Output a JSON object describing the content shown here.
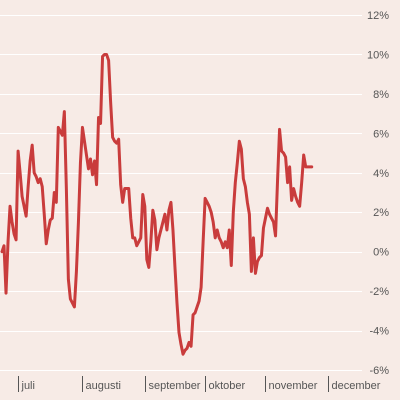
{
  "chart_data": {
    "type": "line",
    "title": "",
    "xlabel": "",
    "ylabel": "",
    "ylim": [
      -6,
      12
    ],
    "y_ticks": [
      -6,
      -4,
      -2,
      0,
      2,
      4,
      6,
      8,
      10,
      12
    ],
    "y_tick_labels": [
      "-6%",
      "-4%",
      "-2%",
      "0%",
      "2%",
      "4%",
      "6%",
      "8%",
      "10%",
      "12%"
    ],
    "y_axis_position": "right",
    "grid": true,
    "legend": "none",
    "x_range": [
      0,
      178
    ],
    "x_unit": "trading day index starting late June",
    "x_ticks": [
      {
        "x": 8,
        "label": "juli"
      },
      {
        "x": 40,
        "label": "augusti"
      },
      {
        "x": 71,
        "label": "september"
      },
      {
        "x": 101,
        "label": "oktober"
      },
      {
        "x": 131,
        "label": "november"
      },
      {
        "x": 162,
        "label": "december"
      }
    ],
    "series": [
      {
        "color": "#c93c3c",
        "points": [
          [
            0,
            0.0
          ],
          [
            1,
            0.3
          ],
          [
            2,
            -2.1
          ],
          [
            3,
            0.5
          ],
          [
            4,
            2.3
          ],
          [
            5,
            1.5
          ],
          [
            6,
            0.9
          ],
          [
            7,
            0.6
          ],
          [
            8,
            5.1
          ],
          [
            9,
            4.0
          ],
          [
            10,
            2.8
          ],
          [
            11,
            2.3
          ],
          [
            12,
            1.8
          ],
          [
            13,
            3.3
          ],
          [
            14,
            4.6
          ],
          [
            15,
            5.4
          ],
          [
            16,
            4.0
          ],
          [
            17,
            3.8
          ],
          [
            18,
            3.5
          ],
          [
            19,
            3.7
          ],
          [
            20,
            3.3
          ],
          [
            21,
            1.9
          ],
          [
            22,
            0.4
          ],
          [
            23,
            1.1
          ],
          [
            24,
            1.6
          ],
          [
            25,
            1.7
          ],
          [
            26,
            3.0
          ],
          [
            27,
            2.5
          ],
          [
            28,
            6.3
          ],
          [
            29,
            6.1
          ],
          [
            30,
            5.9
          ],
          [
            31,
            7.1
          ],
          [
            32,
            3.2
          ],
          [
            33,
            -1.4
          ],
          [
            34,
            -2.4
          ],
          [
            35,
            -2.6
          ],
          [
            36,
            -2.8
          ],
          [
            37,
            -1.0
          ],
          [
            38,
            1.5
          ],
          [
            39,
            4.5
          ],
          [
            40,
            6.3
          ],
          [
            41,
            5.6
          ],
          [
            42,
            4.9
          ],
          [
            43,
            4.2
          ],
          [
            44,
            4.7
          ],
          [
            45,
            3.9
          ],
          [
            46,
            4.6
          ],
          [
            47,
            3.4
          ],
          [
            48,
            6.8
          ],
          [
            49,
            6.5
          ],
          [
            50,
            9.9
          ],
          [
            51,
            10.0
          ],
          [
            52,
            10.0
          ],
          [
            53,
            9.7
          ],
          [
            54,
            7.6
          ],
          [
            55,
            5.8
          ],
          [
            56,
            5.6
          ],
          [
            57,
            5.5
          ],
          [
            58,
            5.7
          ],
          [
            59,
            3.4
          ],
          [
            60,
            2.5
          ],
          [
            61,
            3.2
          ],
          [
            62,
            3.2
          ],
          [
            63,
            3.2
          ],
          [
            64,
            1.7
          ],
          [
            65,
            0.7
          ],
          [
            66,
            0.7
          ],
          [
            67,
            0.3
          ],
          [
            68,
            0.5
          ],
          [
            69,
            0.7
          ],
          [
            70,
            2.9
          ],
          [
            71,
            2.3
          ],
          [
            72,
            -0.4
          ],
          [
            73,
            -0.8
          ],
          [
            74,
            0.5
          ],
          [
            75,
            2.1
          ],
          [
            76,
            1.6
          ],
          [
            77,
            0.1
          ],
          [
            78,
            0.7
          ],
          [
            79,
            1.1
          ],
          [
            80,
            1.5
          ],
          [
            81,
            1.9
          ],
          [
            82,
            1.1
          ],
          [
            83,
            2.1
          ],
          [
            84,
            2.5
          ],
          [
            85,
            1.1
          ],
          [
            86,
            -0.8
          ],
          [
            87,
            -2.6
          ],
          [
            88,
            -4.1
          ],
          [
            89,
            -4.7
          ],
          [
            90,
            -5.2
          ],
          [
            91,
            -5.0
          ],
          [
            92,
            -4.9
          ],
          [
            93,
            -4.6
          ],
          [
            94,
            -4.8
          ],
          [
            95,
            -3.2
          ],
          [
            96,
            -3.1
          ],
          [
            97,
            -2.8
          ],
          [
            98,
            -2.5
          ],
          [
            99,
            -1.8
          ],
          [
            100,
            0.5
          ],
          [
            101,
            2.7
          ],
          [
            102,
            2.5
          ],
          [
            103,
            2.3
          ],
          [
            104,
            2.0
          ],
          [
            105,
            1.5
          ],
          [
            106,
            0.7
          ],
          [
            107,
            1.1
          ],
          [
            108,
            0.7
          ],
          [
            109,
            0.5
          ],
          [
            110,
            0.2
          ],
          [
            111,
            0.5
          ],
          [
            112,
            0.2
          ],
          [
            113,
            1.1
          ],
          [
            114,
            -0.7
          ],
          [
            115,
            2.0
          ],
          [
            116,
            3.5
          ],
          [
            117,
            4.5
          ],
          [
            118,
            5.6
          ],
          [
            119,
            5.2
          ],
          [
            120,
            3.7
          ],
          [
            121,
            3.3
          ],
          [
            122,
            2.5
          ],
          [
            123,
            1.9
          ],
          [
            124,
            -1.0
          ],
          [
            125,
            0.7
          ],
          [
            126,
            -1.1
          ],
          [
            127,
            -0.5
          ],
          [
            128,
            -0.3
          ],
          [
            129,
            -0.2
          ],
          [
            130,
            1.2
          ],
          [
            131,
            1.7
          ],
          [
            132,
            2.2
          ],
          [
            133,
            1.9
          ],
          [
            134,
            1.7
          ],
          [
            135,
            1.5
          ],
          [
            136,
            0.8
          ],
          [
            137,
            3.6
          ],
          [
            138,
            6.2
          ],
          [
            139,
            5.1
          ],
          [
            140,
            5.0
          ],
          [
            141,
            4.8
          ],
          [
            142,
            3.5
          ],
          [
            143,
            4.3
          ],
          [
            144,
            2.6
          ],
          [
            145,
            3.2
          ],
          [
            146,
            2.8
          ],
          [
            147,
            2.5
          ],
          [
            148,
            2.3
          ],
          [
            149,
            3.5
          ],
          [
            150,
            4.9
          ],
          [
            151,
            4.3
          ],
          [
            152,
            4.3
          ],
          [
            153,
            4.3
          ],
          [
            154,
            4.3
          ]
        ]
      }
    ]
  }
}
